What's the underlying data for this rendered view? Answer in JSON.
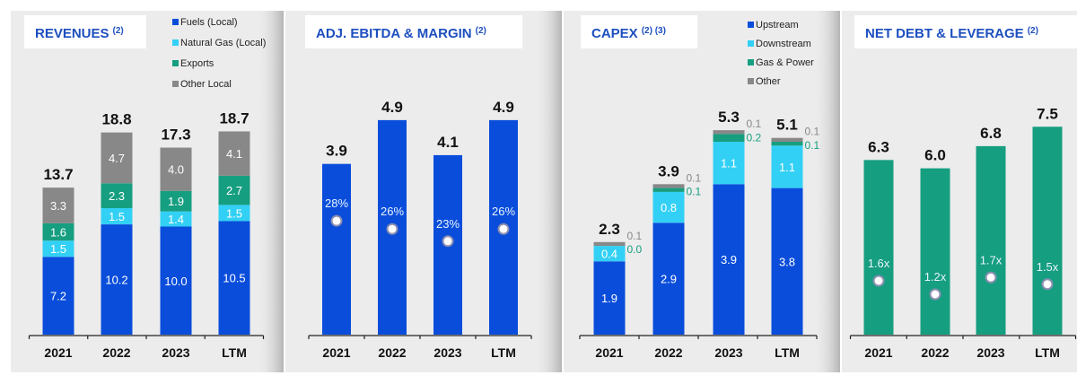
{
  "colors": {
    "blue": "#0a4ddb",
    "cyan": "#33d0f5",
    "green": "#169e80",
    "gray": "#888888",
    "title": "#1d4fbf",
    "panel": "#ececec"
  },
  "chart_data": [
    {
      "type": "bar",
      "stacked": true,
      "title": "REVENUES",
      "title_note": "(2)",
      "categories": [
        "2021",
        "2022",
        "2023",
        "LTM"
      ],
      "totals": [
        "13.7",
        "18.8",
        "17.3",
        "18.7"
      ],
      "legend_position": "top-right",
      "series": [
        {
          "name": "Fuels (Local)",
          "color": "#0a4ddb",
          "values": [
            7.2,
            10.2,
            10.0,
            10.5
          ],
          "labels": [
            "7.2",
            "10.2",
            "10.0",
            "10.5"
          ]
        },
        {
          "name": "Natural Gas (Local)",
          "color": "#33d0f5",
          "values": [
            1.5,
            1.5,
            1.4,
            1.5
          ],
          "labels": [
            "1.5",
            "1.5",
            "1.4",
            "1.5"
          ]
        },
        {
          "name": "Exports",
          "color": "#169e80",
          "values": [
            1.6,
            2.3,
            1.9,
            2.7
          ],
          "labels": [
            "1.6",
            "2.3",
            "1.9",
            "2.7"
          ]
        },
        {
          "name": "Other Local",
          "color": "#888888",
          "values": [
            3.3,
            4.7,
            4.0,
            4.1
          ],
          "labels": [
            "3.3",
            "4.7",
            "4.0",
            "4.1"
          ]
        }
      ]
    },
    {
      "type": "bar",
      "stacked": false,
      "title": "ADJ. EBITDA & MARGIN",
      "title_note": "(2)",
      "categories": [
        "2021",
        "2022",
        "2023",
        "LTM"
      ],
      "totals": [
        "3.9",
        "4.9",
        "4.1",
        "4.9"
      ],
      "series": [
        {
          "color": "#0a4ddb",
          "values": [
            3.9,
            4.9,
            4.1,
            4.9
          ]
        }
      ],
      "markers": {
        "values": [
          28,
          26,
          23,
          26
        ],
        "labels": [
          "28%",
          "26%",
          "23%",
          "26%"
        ]
      }
    },
    {
      "type": "bar",
      "stacked": true,
      "title": "CAPEX",
      "title_note": "(2) (3)",
      "categories": [
        "2021",
        "2022",
        "2023",
        "LTM"
      ],
      "totals": [
        "2.3",
        "3.9",
        "5.3",
        "5.1"
      ],
      "legend_position": "top-right",
      "series": [
        {
          "name": "Upstream",
          "color": "#0a4ddb",
          "values": [
            1.9,
            2.9,
            3.9,
            3.8
          ],
          "labels": [
            "1.9",
            "2.9",
            "3.9",
            "3.8"
          ]
        },
        {
          "name": "Downstream",
          "color": "#33d0f5",
          "values": [
            0.4,
            0.8,
            1.1,
            1.1
          ],
          "labels": [
            "0.4",
            "0.8",
            "1.1",
            "1.1"
          ]
        },
        {
          "name": "Gas & Power",
          "color": "#169e80",
          "values": [
            0.0,
            0.1,
            0.2,
            0.1
          ],
          "labels": [
            "0.0",
            "0.1",
            "0.2",
            "0.1"
          ]
        },
        {
          "name": "Other",
          "color": "#888888",
          "values": [
            0.1,
            0.1,
            0.1,
            0.1
          ],
          "labels": [
            "0.1",
            "0.1",
            "0.1",
            "0.1"
          ]
        }
      ]
    },
    {
      "type": "bar",
      "stacked": false,
      "title": "NET DEBT & LEVERAGE",
      "title_note": "(2)",
      "categories": [
        "2021",
        "2022",
        "2023",
        "LTM"
      ],
      "totals": [
        "6.3",
        "6.0",
        "6.8",
        "7.5"
      ],
      "series": [
        {
          "color": "#169e80",
          "values": [
            6.3,
            6.0,
            6.8,
            7.5
          ]
        }
      ],
      "markers": {
        "values": [
          1.6,
          1.2,
          1.7,
          1.5
        ],
        "labels": [
          "1.6x",
          "1.2x",
          "1.7x",
          "1.5x"
        ]
      }
    }
  ]
}
